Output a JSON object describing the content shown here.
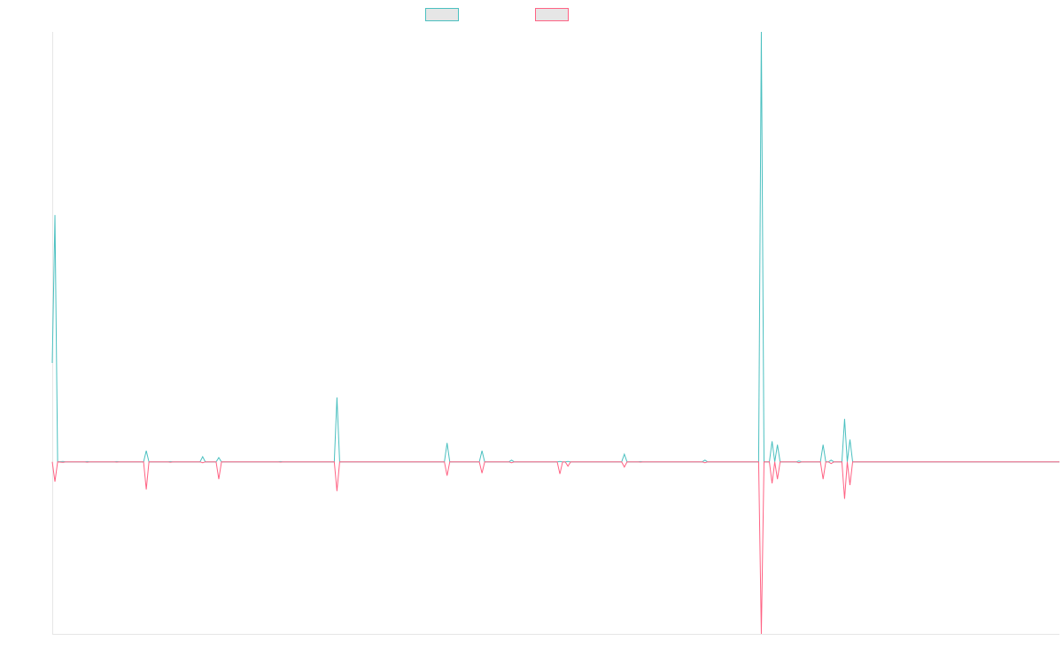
{
  "chart_data": {
    "type": "line",
    "title": "",
    "xlabel": "",
    "ylabel": "",
    "grid": false,
    "legend_position": "top-center",
    "x": [
      0,
      1,
      2,
      3,
      4,
      5,
      6,
      7,
      8,
      9,
      10,
      11,
      12,
      13,
      14,
      15,
      16,
      17,
      18,
      19,
      20,
      21,
      22,
      23,
      24,
      25,
      26,
      27,
      28,
      29,
      30,
      31,
      32,
      33,
      34,
      35,
      36,
      37,
      38,
      39,
      40,
      41,
      42,
      43,
      44,
      45,
      46,
      47,
      48,
      49,
      50,
      51,
      52,
      53,
      54,
      55,
      56,
      57,
      58,
      59,
      60,
      61,
      62,
      63,
      64,
      65,
      66,
      67,
      68,
      69,
      70,
      71,
      72,
      73,
      74,
      75,
      76,
      77,
      78,
      79,
      80,
      81,
      82,
      83,
      84,
      85,
      86,
      87,
      88,
      89,
      90,
      91,
      92,
      93,
      94,
      95,
      96,
      97,
      98,
      99,
      100,
      101,
      102,
      103,
      104,
      105,
      106,
      107,
      108,
      109,
      110,
      111,
      112,
      113,
      114,
      115,
      116,
      117,
      118,
      119,
      120,
      121,
      122,
      123,
      124,
      125,
      126,
      127,
      128,
      129,
      130,
      131,
      132,
      133,
      134,
      135,
      136,
      137,
      138,
      139,
      140,
      141,
      142,
      143,
      144,
      145,
      146,
      147,
      148,
      149,
      150,
      151,
      152,
      153,
      154,
      155,
      156,
      157,
      158,
      159,
      160,
      161,
      162,
      163,
      164,
      165,
      166,
      167,
      168,
      169,
      170,
      171,
      172,
      173,
      174,
      175,
      176,
      177,
      178,
      179,
      180,
      181,
      182,
      183,
      184,
      185,
      186,
      187,
      188,
      189,
      190,
      191,
      192,
      193,
      194,
      195,
      196,
      197,
      198,
      199,
      200,
      201,
      202,
      203,
      204,
      205,
      206,
      207,
      208,
      209,
      210,
      211,
      212,
      213,
      214,
      215,
      216,
      217,
      218,
      219,
      220,
      221,
      222,
      223,
      224,
      225,
      226,
      227,
      228,
      229,
      230,
      231,
      232,
      233,
      234,
      235,
      236,
      237,
      238,
      239,
      240,
      241,
      242,
      243,
      244,
      245,
      246,
      247,
      248,
      249,
      250,
      251,
      252,
      253,
      254,
      255,
      256,
      257,
      258,
      259,
      260,
      261,
      262,
      263,
      264,
      265,
      266,
      267,
      268,
      269,
      270,
      271,
      272,
      273,
      274,
      275,
      276,
      277,
      278,
      279,
      280,
      281,
      282,
      283,
      284,
      285,
      286,
      287,
      288,
      289,
      290,
      291,
      292,
      293,
      294,
      295,
      296,
      297,
      298,
      299,
      300,
      301,
      302,
      303,
      304,
      305,
      306,
      307,
      308,
      309,
      310,
      311,
      312,
      313,
      314,
      315,
      316,
      317,
      318,
      319,
      320,
      321,
      322,
      323,
      324,
      325,
      326,
      327,
      328,
      329,
      330,
      331,
      332,
      333,
      334,
      335,
      336,
      337,
      338,
      339,
      340,
      341,
      342,
      343,
      344,
      345,
      346,
      347,
      348,
      349,
      350,
      351,
      352,
      353,
      354,
      355,
      356,
      357,
      358,
      359,
      360,
      361,
      362,
      363,
      364,
      365,
      366,
      367,
      368,
      369,
      370,
      371,
      372,
      373,
      374,
      375
    ],
    "ylim": [
      -200,
      500
    ],
    "series": [
      {
        "name": "",
        "color": "#4bc0c0",
        "points": [
          [
            0,
            115
          ],
          [
            1,
            287
          ],
          [
            2,
            0
          ],
          [
            4,
            0.5
          ],
          [
            5,
            0
          ],
          [
            12,
            0
          ],
          [
            13,
            0.4
          ],
          [
            14,
            0
          ],
          [
            23,
            0
          ],
          [
            24,
            0.3
          ],
          [
            25,
            0
          ],
          [
            34,
            0
          ],
          [
            35,
            13
          ],
          [
            36,
            0
          ],
          [
            43,
            0
          ],
          [
            44,
            0.4
          ],
          [
            45,
            0
          ],
          [
            55,
            0
          ],
          [
            56,
            6
          ],
          [
            57,
            0
          ],
          [
            61,
            0
          ],
          [
            62,
            5
          ],
          [
            63,
            0
          ],
          [
            84,
            0
          ],
          [
            85,
            0.3
          ],
          [
            86,
            0
          ],
          [
            105,
            0
          ],
          [
            106,
            75
          ],
          [
            107,
            0
          ],
          [
            146,
            0
          ],
          [
            147,
            22
          ],
          [
            148,
            0
          ],
          [
            159,
            0
          ],
          [
            160,
            13
          ],
          [
            161,
            0
          ],
          [
            170,
            0
          ],
          [
            171,
            2
          ],
          [
            172,
            0
          ],
          [
            188,
            0
          ],
          [
            189,
            0.5
          ],
          [
            190,
            0
          ],
          [
            191,
            0
          ],
          [
            192,
            0.5
          ],
          [
            193,
            0
          ],
          [
            218,
            0
          ],
          [
            219,
            0.3
          ],
          [
            220,
            0
          ],
          [
            212,
            0
          ],
          [
            213,
            9
          ],
          [
            214,
            0
          ],
          [
            242,
            0
          ],
          [
            243,
            2
          ],
          [
            244,
            0
          ],
          [
            262,
            0
          ],
          [
            263,
            0
          ],
          [
            264,
            500
          ],
          [
            265,
            0
          ],
          [
            267,
            0
          ],
          [
            268,
            24
          ],
          [
            269,
            0
          ],
          [
            270,
            20
          ],
          [
            271,
            0
          ],
          [
            277,
            0
          ],
          [
            278,
            1
          ],
          [
            279,
            0
          ],
          [
            286,
            0
          ],
          [
            287,
            20
          ],
          [
            288,
            0
          ],
          [
            289,
            0
          ],
          [
            290,
            2
          ],
          [
            291,
            0
          ],
          [
            294,
            0
          ],
          [
            295,
            50
          ],
          [
            296,
            0
          ],
          [
            297,
            26
          ],
          [
            298,
            0
          ],
          [
            375,
            0
          ]
        ]
      },
      {
        "name": "",
        "color": "#ff6384",
        "points": [
          [
            0,
            0
          ],
          [
            1,
            -23
          ],
          [
            2,
            0
          ],
          [
            4,
            -0.5
          ],
          [
            5,
            0
          ],
          [
            12,
            0
          ],
          [
            13,
            -0.4
          ],
          [
            14,
            0
          ],
          [
            23,
            0
          ],
          [
            24,
            -0.3
          ],
          [
            25,
            0
          ],
          [
            34,
            0
          ],
          [
            35,
            -32
          ],
          [
            36,
            0
          ],
          [
            43,
            0
          ],
          [
            44,
            -0.4
          ],
          [
            45,
            0
          ],
          [
            55,
            0
          ],
          [
            56,
            -1
          ],
          [
            57,
            0
          ],
          [
            61,
            0
          ],
          [
            62,
            -20
          ],
          [
            63,
            0
          ],
          [
            84,
            0
          ],
          [
            85,
            -0.3
          ],
          [
            86,
            0
          ],
          [
            105,
            0
          ],
          [
            106,
            -34
          ],
          [
            107,
            0
          ],
          [
            146,
            0
          ],
          [
            147,
            -16
          ],
          [
            148,
            0
          ],
          [
            159,
            0
          ],
          [
            160,
            -13
          ],
          [
            161,
            0
          ],
          [
            170,
            0
          ],
          [
            171,
            -1
          ],
          [
            172,
            0
          ],
          [
            188,
            0
          ],
          [
            189,
            -14
          ],
          [
            190,
            0
          ],
          [
            191,
            0
          ],
          [
            192,
            -5
          ],
          [
            193,
            0
          ],
          [
            218,
            0
          ],
          [
            219,
            -0.3
          ],
          [
            220,
            0
          ],
          [
            212,
            0
          ],
          [
            213,
            -6
          ],
          [
            214,
            0
          ],
          [
            242,
            0
          ],
          [
            243,
            -1
          ],
          [
            244,
            0
          ],
          [
            262,
            0
          ],
          [
            263,
            0
          ],
          [
            264,
            -200
          ],
          [
            265,
            0
          ],
          [
            267,
            0
          ],
          [
            268,
            -25
          ],
          [
            269,
            0
          ],
          [
            270,
            -20
          ],
          [
            271,
            0
          ],
          [
            277,
            0
          ],
          [
            278,
            -1
          ],
          [
            279,
            0
          ],
          [
            286,
            0
          ],
          [
            287,
            -20
          ],
          [
            288,
            0
          ],
          [
            289,
            0
          ],
          [
            290,
            -2
          ],
          [
            291,
            0
          ],
          [
            294,
            0
          ],
          [
            295,
            -43
          ],
          [
            296,
            0
          ],
          [
            297,
            -27
          ],
          [
            298,
            0
          ],
          [
            375,
            0
          ]
        ]
      }
    ]
  }
}
